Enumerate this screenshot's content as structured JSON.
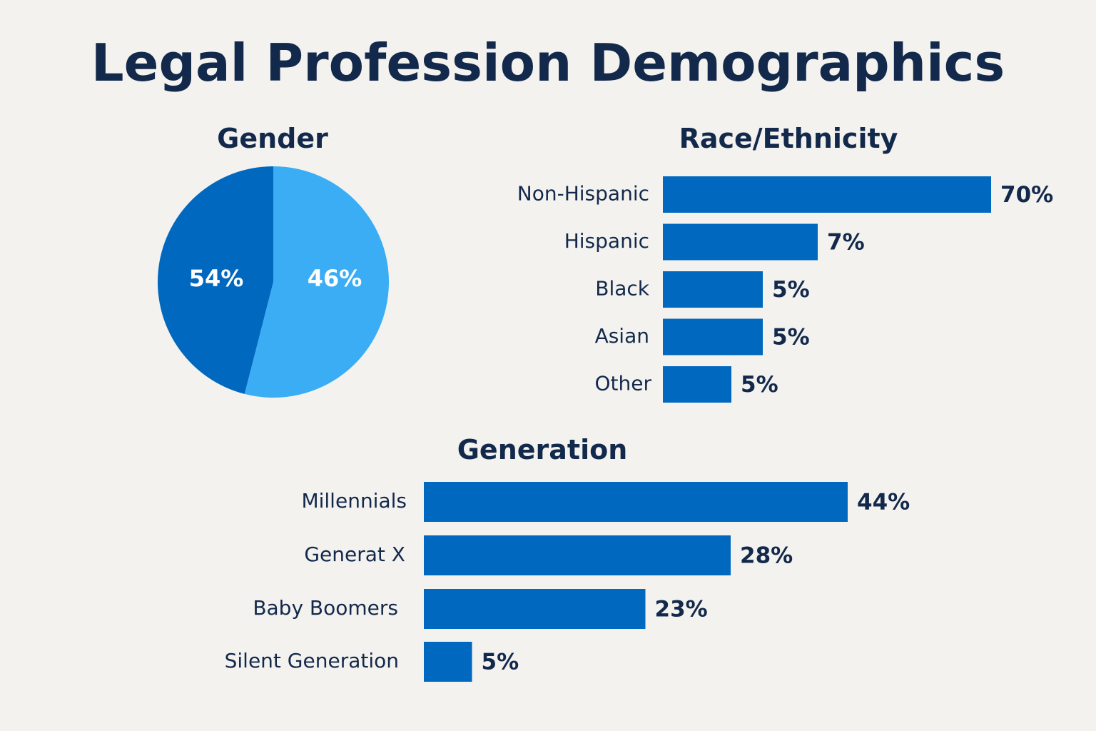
{
  "title": "Legal Profession Demographics",
  "colors": {
    "primary": "#0068bf",
    "secondary": "#3aadf5",
    "text": "#13294b",
    "background": "#f3f2ef"
  },
  "chart_data": [
    {
      "type": "pie",
      "title": "Gender",
      "slices": [
        {
          "label": "54%",
          "value": 54,
          "color": "#3aadf5"
        },
        {
          "label": "46%",
          "value": 46,
          "color": "#0068bf"
        }
      ]
    },
    {
      "type": "bar",
      "orientation": "horizontal",
      "title": "Race/Ethnicity",
      "categories": [
        "Non-Hispanic",
        "Hispanic",
        "Black",
        "Asian",
        "Other"
      ],
      "values": [
        70,
        7,
        5,
        5,
        5
      ],
      "value_labels": [
        "70%",
        "7%",
        "5%",
        "5%",
        "5%"
      ],
      "xlim": [
        0,
        70
      ]
    },
    {
      "type": "bar",
      "orientation": "horizontal",
      "title": "Generation",
      "categories": [
        "Millennials",
        "Generat X",
        "Baby Boomers",
        "Silent Generation"
      ],
      "values": [
        44,
        28,
        23,
        5
      ],
      "value_labels": [
        "44%",
        "28%",
        "23%",
        "5%"
      ],
      "xlim": [
        0,
        44
      ]
    }
  ]
}
